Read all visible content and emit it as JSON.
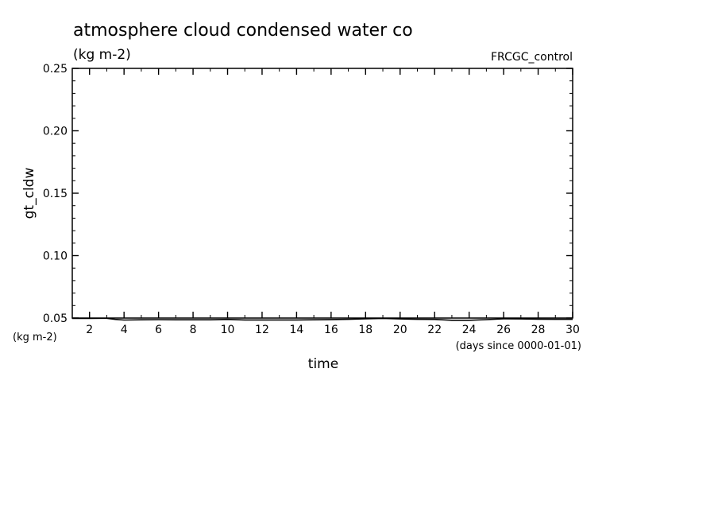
{
  "chart_data": {
    "type": "line",
    "title": "atmosphere cloud condensed water co",
    "subtitle": "(kg m-2)",
    "dataset_label": "FRCGC_control",
    "ylabel": "gt_cldw",
    "yunits": "(kg m-2)",
    "xlabel": "time",
    "xunits": "(days since 0000-01-01)",
    "xlim": [
      1,
      30
    ],
    "ylim": [
      0.05,
      0.25
    ],
    "xticks": [
      2,
      4,
      6,
      8,
      10,
      12,
      14,
      16,
      18,
      20,
      22,
      24,
      26,
      28,
      30
    ],
    "yticks": [
      "0.05",
      "0.10",
      "0.15",
      "0.20",
      "0.25"
    ],
    "series": [
      {
        "x": [
          1,
          2,
          3,
          3.5,
          4,
          5,
          6,
          7,
          8,
          9,
          10,
          11,
          12,
          13,
          14,
          15,
          16,
          17,
          18,
          19,
          20,
          21,
          22,
          23,
          24,
          25,
          26,
          27,
          28,
          29,
          30
        ],
        "y": [
          0.0497,
          0.0497,
          0.0498,
          0.0489,
          0.0484,
          0.0486,
          0.0487,
          0.0486,
          0.0486,
          0.0486,
          0.0489,
          0.0485,
          0.0485,
          0.0485,
          0.0485,
          0.0486,
          0.0488,
          0.049,
          0.0494,
          0.0497,
          0.0493,
          0.049,
          0.0489,
          0.0482,
          0.0482,
          0.0487,
          0.0494,
          0.0493,
          0.0491,
          0.049,
          0.049
        ],
        "color": "#000000"
      }
    ]
  }
}
